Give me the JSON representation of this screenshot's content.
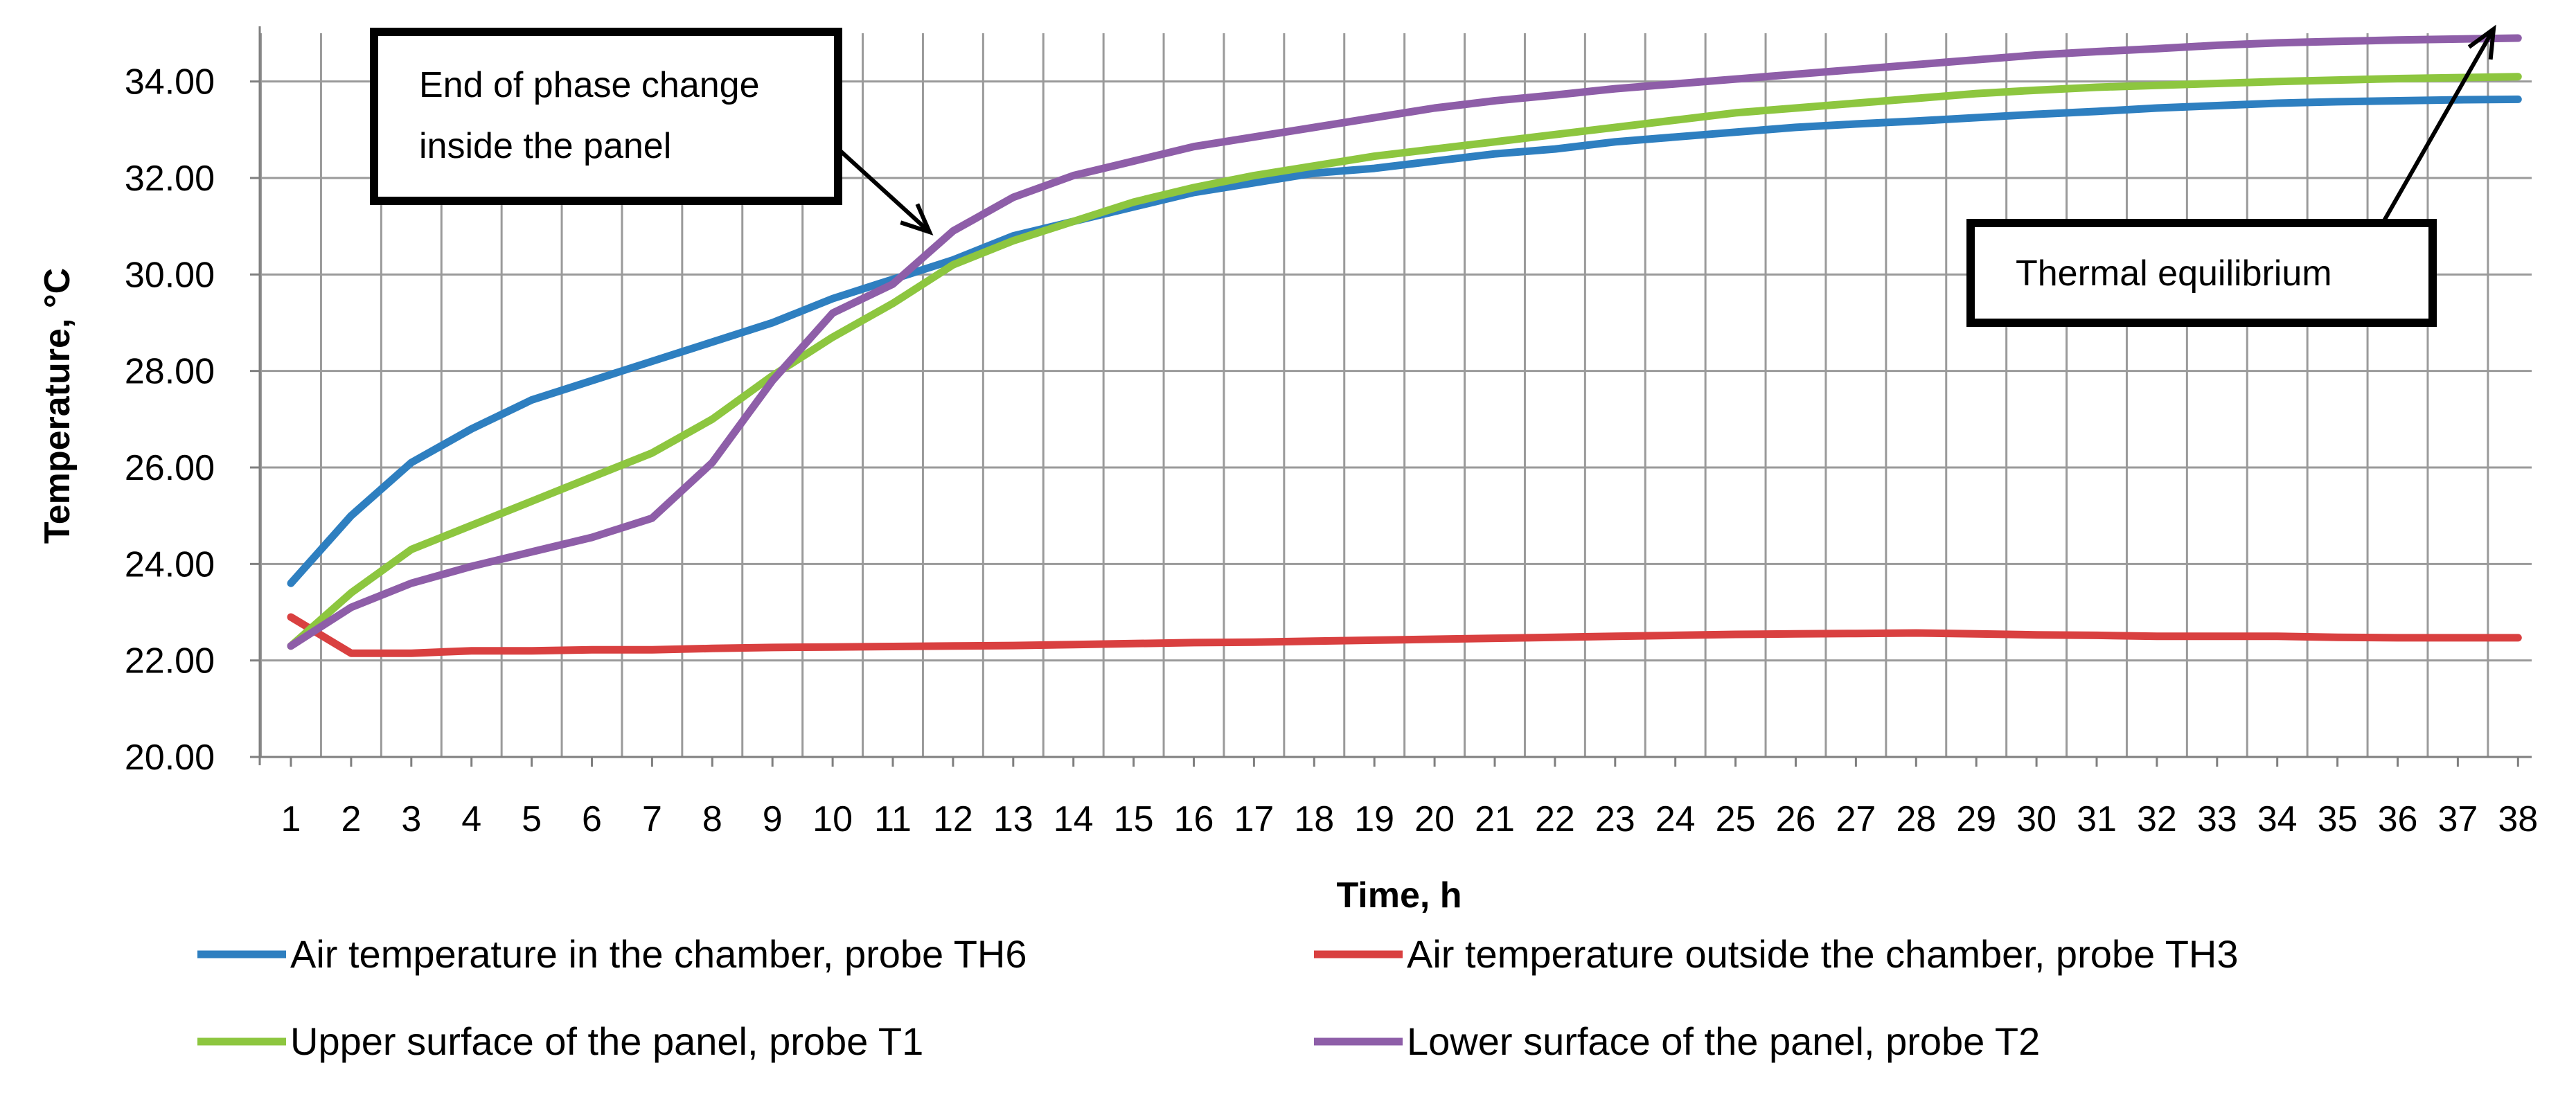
{
  "chart_data": {
    "type": "line",
    "title": "",
    "xlabel": "Time, h",
    "ylabel": "Temperature, °C",
    "x": [
      1,
      2,
      3,
      4,
      5,
      6,
      7,
      8,
      9,
      10,
      11,
      12,
      13,
      14,
      15,
      16,
      17,
      18,
      19,
      20,
      21,
      22,
      23,
      24,
      25,
      26,
      27,
      28,
      29,
      30,
      31,
      32,
      33,
      34,
      35,
      36,
      37,
      38
    ],
    "x_tick_labels": [
      "1",
      "2",
      "3",
      "4",
      "5",
      "6",
      "7",
      "8",
      "9",
      "10",
      "11",
      "12",
      "13",
      "14",
      "15",
      "16",
      "17",
      "18",
      "19",
      "20",
      "21",
      "22",
      "23",
      "24",
      "25",
      "26",
      "27",
      "28",
      "29",
      "30",
      "31",
      "32",
      "33",
      "34",
      "35",
      "36",
      "37",
      "38"
    ],
    "ylim": [
      20,
      35
    ],
    "y_ticks": [
      20,
      22,
      24,
      26,
      28,
      30,
      32,
      34
    ],
    "y_tick_labels": [
      "20.00",
      "22.00",
      "24.00",
      "26.00",
      "28.00",
      "30.00",
      "32.00",
      "34.00"
    ],
    "grid": true,
    "legend_position": "bottom",
    "series": [
      {
        "name": "Air temperature in the chamber, probe TH6",
        "color": "#2E7FC0",
        "values": [
          23.6,
          25.0,
          26.1,
          26.8,
          27.4,
          27.8,
          28.2,
          28.6,
          29.0,
          29.5,
          29.9,
          30.3,
          30.8,
          31.1,
          31.4,
          31.7,
          31.9,
          32.1,
          32.2,
          32.35,
          32.5,
          32.6,
          32.75,
          32.85,
          32.95,
          33.05,
          33.12,
          33.18,
          33.25,
          33.32,
          33.38,
          33.45,
          33.5,
          33.55,
          33.58,
          33.6,
          33.62,
          33.63
        ]
      },
      {
        "name": "Air temperature outside the chamber, probe TH3",
        "color": "#D94040",
        "values": [
          22.9,
          22.15,
          22.15,
          22.2,
          22.2,
          22.22,
          22.22,
          22.25,
          22.27,
          22.28,
          22.29,
          22.3,
          22.31,
          22.33,
          22.35,
          22.37,
          22.38,
          22.4,
          22.42,
          22.44,
          22.46,
          22.48,
          22.5,
          22.52,
          22.54,
          22.55,
          22.56,
          22.57,
          22.55,
          22.53,
          22.52,
          22.5,
          22.5,
          22.5,
          22.48,
          22.47,
          22.47,
          22.47
        ]
      },
      {
        "name": "Upper surface of the panel, probe T1",
        "color": "#8DC63F",
        "values": [
          22.3,
          23.4,
          24.3,
          24.8,
          25.3,
          25.8,
          26.3,
          27.0,
          27.9,
          28.7,
          29.4,
          30.2,
          30.7,
          31.1,
          31.5,
          31.8,
          32.05,
          32.25,
          32.45,
          32.6,
          32.75,
          32.9,
          33.05,
          33.2,
          33.35,
          33.45,
          33.55,
          33.65,
          33.75,
          33.82,
          33.88,
          33.92,
          33.96,
          34.0,
          34.03,
          34.06,
          34.08,
          34.1
        ]
      },
      {
        "name": "Lower surface of the panel, probe T2",
        "color": "#8E5EA8",
        "values": [
          22.3,
          23.1,
          23.6,
          23.95,
          24.25,
          24.55,
          24.95,
          26.1,
          27.8,
          29.2,
          29.8,
          30.9,
          31.6,
          32.05,
          32.35,
          32.65,
          32.85,
          33.05,
          33.25,
          33.45,
          33.6,
          33.72,
          33.85,
          33.95,
          34.05,
          34.15,
          34.25,
          34.35,
          34.45,
          34.55,
          34.62,
          34.68,
          34.75,
          34.8,
          34.83,
          34.86,
          34.88,
          34.9
        ]
      }
    ],
    "annotations": [
      {
        "text_lines": [
          "End of phase change",
          "inside the panel"
        ]
      },
      {
        "text_lines": [
          "Thermal equilibrium"
        ]
      }
    ]
  }
}
